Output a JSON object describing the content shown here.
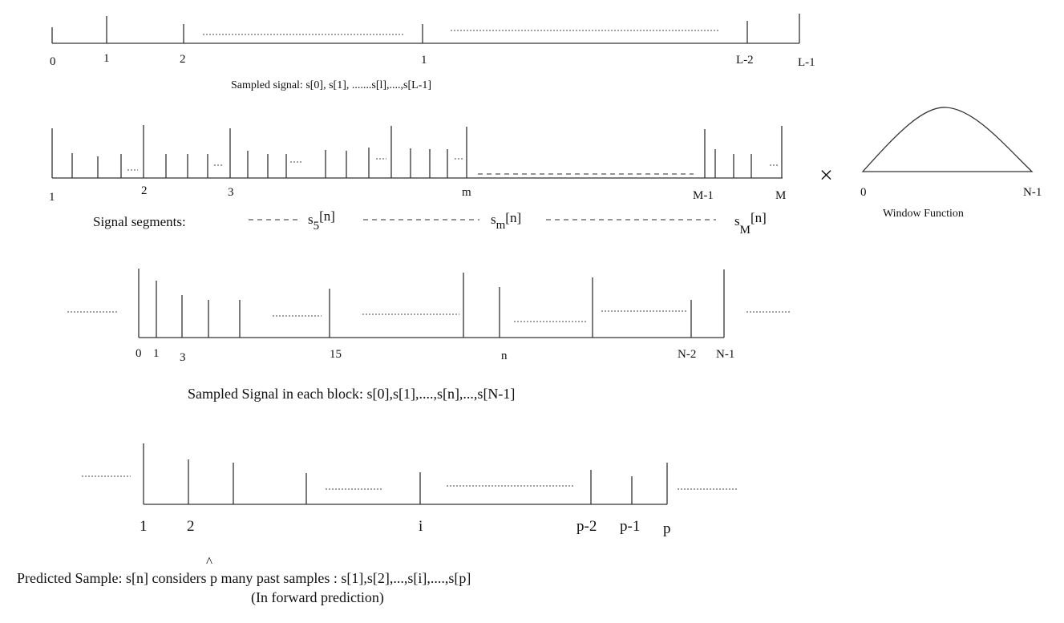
{
  "row1": {
    "ticks": [
      "0",
      "1",
      "2",
      "1",
      "L-2",
      "L-1"
    ],
    "caption": "Sampled signal: s[0], s[1], .......s[l],....,s[L-1]"
  },
  "row2": {
    "ticks": [
      "1",
      "2",
      "3",
      "m",
      "M-1",
      "M"
    ],
    "segments_label": "Signal segments:",
    "seg1_base": "s",
    "seg1_sub": "5",
    "seg1_arg": "[n]",
    "seg2_base": "s",
    "seg2_sub": "m",
    "seg2_arg": "[n]",
    "seg3_base": "s",
    "seg3_sub": "M",
    "seg3_arg": "[n]",
    "multiply": "×",
    "window_ticks": [
      "0",
      "N-1"
    ],
    "window_caption": "Window Function"
  },
  "row3": {
    "ticks": [
      "0",
      "1",
      "3",
      "15",
      "n",
      "N-2",
      "N-1"
    ],
    "caption": "Sampled Signal in each block: s[0],s[1],....,s[n],...,s[N-1]"
  },
  "row4": {
    "ticks": [
      "1",
      "2",
      "i",
      "p-2",
      "p-1",
      "p"
    ],
    "hat": "^",
    "caption": "Predicted Sample: s[n] considers p many past samples  : s[1],s[2],...,s[i],....,s[p]",
    "caption2": "(In forward prediction)"
  }
}
